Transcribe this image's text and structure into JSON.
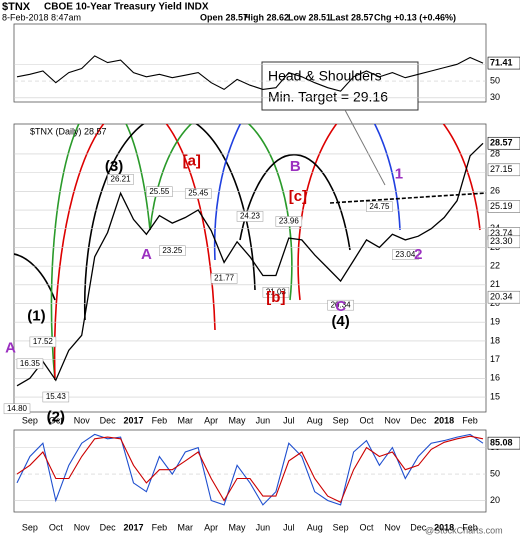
{
  "header": {
    "symbol": "$TNX",
    "name": "CBOE 10-Year Treasury Yield INDX",
    "date": "8-Feb-2018 8:47am",
    "quote": [
      "Open 28.57",
      "High 28.62",
      "Low 28.51",
      "Last 28.57",
      "Chg +0.13 (+0.46%)"
    ],
    "brand": "@StockCharts.com"
  },
  "chart_data": [
    {
      "type": "line",
      "ylim": [
        25,
        118
      ],
      "yticks": [
        30,
        50,
        70
      ],
      "grid": true,
      "series": [
        {
          "color": "#000000",
          "values": [
            55,
            58,
            62,
            48,
            60,
            65,
            80,
            72,
            75,
            60,
            55,
            58,
            54,
            57,
            60,
            48,
            40,
            52,
            45,
            40,
            42,
            60,
            55,
            48,
            42,
            38,
            55,
            62,
            55,
            60,
            54,
            58,
            62,
            66,
            70,
            78,
            71.41
          ]
        }
      ]
    },
    {
      "type": "line",
      "legend_text": "$TNX (Daily) 28.57",
      "ylim": [
        14.2,
        29.6
      ],
      "yticks": [
        15,
        16,
        17,
        18,
        19,
        20,
        21,
        22,
        23,
        24,
        25,
        26,
        27,
        28
      ],
      "grid": true,
      "categories": [
        null,
        "Sep",
        null,
        "Oct",
        null,
        "Nov",
        null,
        "Dec",
        null,
        "2017",
        null,
        "Feb",
        null,
        "Mar",
        null,
        "Apr",
        null,
        "May",
        null,
        "Jun",
        null,
        "Jul",
        null,
        "Aug",
        null,
        "Sep",
        null,
        "Oct",
        null,
        "Nov",
        null,
        "Dec",
        null,
        "2018",
        null,
        "Feb",
        null
      ],
      "series": [
        {
          "color": "#000000",
          "values": [
            15.6,
            16.0,
            16.9,
            15.9,
            17.5,
            18.3,
            22.5,
            23.8,
            25.9,
            24.5,
            23.7,
            24.7,
            24.3,
            24.6,
            25.0,
            23.9,
            22.2,
            23.3,
            22.5,
            21.5,
            21.5,
            23.5,
            23.4,
            22.6,
            21.9,
            21.2,
            22.3,
            23.4,
            23.0,
            23.7,
            23.4,
            23.6,
            24.0,
            24.6,
            25.5,
            27.9,
            28.57
          ]
        }
      ],
      "tags": {
        "values": [
          27.15,
          25.19,
          23.74,
          23.3,
          20.34
        ],
        "value_labels": [
          "27.15",
          "25.19",
          "23.74",
          "23.30",
          "20.34"
        ]
      },
      "point_labels": {
        "values": [
          14.8,
          16.35,
          17.52,
          15.43,
          26.21,
          25.55,
          23.25,
          25.45,
          21.77,
          24.23,
          23.96,
          21.03,
          20.34,
          24.75,
          23.04
        ],
        "value_labels": [
          "14.80",
          "16.35",
          "17.52",
          "15.43",
          "26.21",
          "25.55",
          "23.25",
          "25.45",
          "21.77",
          "24.23",
          "23.96",
          "21.03",
          "20.34",
          "24.75",
          "23.04"
        ]
      },
      "wave_labels": [
        {
          "text": "(1)",
          "color": "#000000"
        },
        {
          "text": "(2)",
          "color": "#000000"
        },
        {
          "text": "(3)",
          "color": "#000000"
        },
        {
          "text": "(4)",
          "color": "#000000"
        },
        {
          "text": "A",
          "color": "#9b30c0"
        },
        {
          "text": "A",
          "color": "#9b30c0"
        },
        {
          "text": "B",
          "color": "#9b30c0"
        },
        {
          "text": "C",
          "color": "#9b30c0"
        },
        {
          "text": "1",
          "color": "#9b30c0"
        },
        {
          "text": "2",
          "color": "#9b30c0"
        },
        {
          "text": "[a]",
          "color": "#cc0000"
        },
        {
          "text": "[b]",
          "color": "#cc0000"
        },
        {
          "text": "[c]",
          "color": "#cc0000"
        }
      ],
      "annotation": [
        "Head & Shoulders",
        "Min. Target = 29.16"
      ]
    },
    {
      "type": "line",
      "ylim": [
        7,
        100
      ],
      "yticks": [
        20,
        50,
        80
      ],
      "grid": true,
      "series": [
        {
          "color": "#1f4fcf",
          "values": [
            40,
            70,
            85,
            20,
            60,
            85,
            95,
            90,
            92,
            40,
            30,
            70,
            50,
            75,
            80,
            20,
            15,
            60,
            40,
            15,
            30,
            85,
            70,
            30,
            20,
            15,
            75,
            88,
            60,
            80,
            45,
            70,
            85,
            88,
            92,
            95,
            85.08
          ]
        },
        {
          "color": "#cc0000",
          "values": [
            50,
            60,
            75,
            45,
            45,
            70,
            90,
            92,
            90,
            60,
            40,
            55,
            55,
            65,
            75,
            45,
            20,
            45,
            45,
            25,
            25,
            65,
            75,
            45,
            25,
            18,
            55,
            80,
            70,
            75,
            55,
            60,
            78,
            86,
            90,
            93,
            90
          ]
        }
      ]
    }
  ]
}
